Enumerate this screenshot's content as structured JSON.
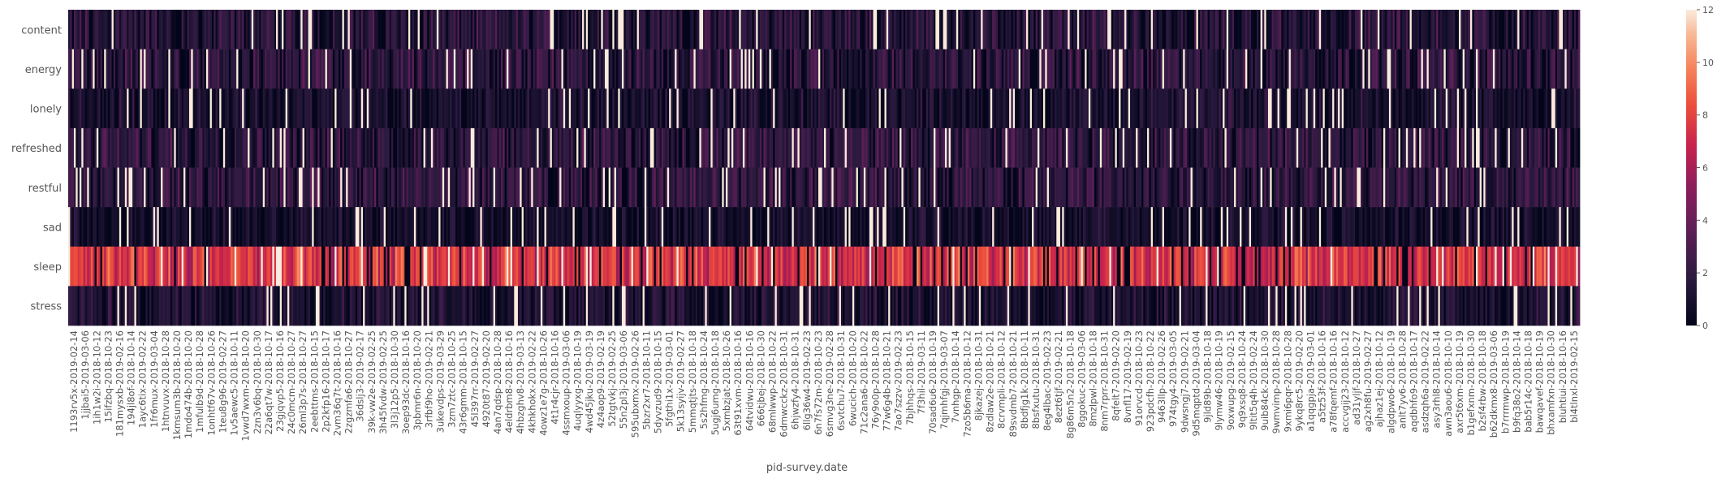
{
  "chart_data": {
    "type": "heatmap",
    "xlabel": "pid-survey.date",
    "ylabel": "",
    "rows": [
      "content",
      "energy",
      "lonely",
      "refreshed",
      "restful",
      "sad",
      "sleep",
      "stress"
    ],
    "n_columns": 800,
    "x_tick_labels": [
      "1193rv5x-2019-02-14",
      "1jjbai5-2019-03-06",
      "1ih1w2i-2018-10-12",
      "15ifzbq-2018-10-23",
      "181mysxb-2019-02-16",
      "194jl8of-2018-10-14",
      "1ayc6tix-2019-02-22",
      "1fr6mux-2019-03-04",
      "1htnvuvx-2018-10-28",
      "1kmsum3b-2018-10-20",
      "1mdo474b-2018-10-20",
      "1mfulb9d-2018-10-28",
      "1onhtf67v-2018-10-26",
      "1teu8g96-2019-02-27",
      "1v5aewc5-2018-10-11",
      "1vwd7wxm-2018-10-20",
      "2zn3v6bq-2018-10-30",
      "22a6qt7w-2018-10-17",
      "23gjqvp5-2018-10-16",
      "24c0mcm-2018-10-27",
      "26ml3p7s-2018-10-27",
      "2eebttms-2018-10-15",
      "2p2kfp16-2018-10-17",
      "2vm36q7t-2018-10-16",
      "2zgzmfa6-2018-10-27",
      "36dslj3-2019-02-17",
      "39k-vw2e-2019-02-25",
      "3h45fvdw-2019-02-25",
      "3l3j12p5-2018-10-30",
      "3oep93dc-2018-10-16",
      "3pbmr6n-2018-10-20",
      "3rfbf9ho-2019-02-21",
      "3ukevdps-2019-03-29",
      "3zm7ztc-2018-10-25",
      "43r6gmm-2018-10-15",
      "45l397rr-2019-02-27",
      "4920t87-2019-02-20",
      "4an7qdsp-2018-10-28",
      "4eldrbm8-2018-10-16",
      "4hbzghv8-2019-03-13",
      "4khkhokx-2019-02-22",
      "4owz1e7g-2018-10-26",
      "4t1r4cjr-2018-10-16",
      "4ssmxoup-2019-03-06",
      "4uqlyyxg-2018-10-19",
      "4wd45jku-2019-03-19",
      "4z4aop9-2019-02-19",
      "52tgtvkj-2019-02-25",
      "55n2pl3j-2019-03-06",
      "595ubxmx-2019-02-26",
      "5bzr2xr7-2018-10-11",
      "5dyvzud9-2018-10-15",
      "5fgthi1x-2019-03-01",
      "5k13syijv-2019-02-27",
      "5mmqtjts-2018-10-18",
      "5s2hfmg-2018-10-24",
      "5ugj6umg-2018-10-18",
      "5xmbzjat-2018-10-26",
      "63t91xvm-2018-10-16",
      "64tvidwu-2018-10-16",
      "666tjbej-2018-10-30",
      "68mlwwp-2018-10-22",
      "6dmwcckz-2018-10-31",
      "6hjwzfy4-2018-10-31",
      "6llg36w4-2019-02-23",
      "6n7fs72m-2018-10-23",
      "6smvg3ne-2019-02-28",
      "6svtchu7-2018-10-31",
      "6wucich-2018-10-20",
      "71c2ana6-2018-10-22",
      "76y9o0p-2018-10-28",
      "77w6g4b-2018-10-21",
      "7ao7szzv-2019-02-23",
      "7bjhhqs-2018-10-15",
      "7f3hil-2019-03-11",
      "70sad6u6-2018-10-19",
      "7qjmhfgj-2019-03-07",
      "7vnhgp-2018-10-14",
      "7zo5b6ma-2018-10-12",
      "8jkazej-2018-10-31",
      "8zdlaw2e-2018-10-21",
      "8crvmpli-2018-10-12",
      "89svdmb7-2018-10-21",
      "8bdfjg1k-2018-10-11",
      "8bsfxutu-2018-10-31",
      "8eg4lbac-2019-02-23",
      "8ezt6tjf-2019-02-21",
      "8g86m5n2-2018-10-18",
      "8ggokuc-2019-03-06",
      "8mzlpwl-2018-10-18",
      "8nm7rprr-2018-10-31",
      "8qfelt7-2019-02-20",
      "8vnfl17-2019-02-19",
      "91orvcd-2018-10-23",
      "923pdcfh-2018-10-22",
      "9463llp-2019-02-26",
      "974tgy4-2019-03-05",
      "9dwsngj7-2019-02-21",
      "9d5mqptd-2019-03-04",
      "9jld89b-2018-10-18",
      "9lymw46-2018-10-19",
      "9oxwupg-2019-02-15",
      "9q9xsq8-2018-10-24",
      "9ltit5q4h-2019-02-24",
      "9uib84ck-2018-10-30",
      "9wmvimp-2018-10-28",
      "9xmi6pqr-2018-10-28",
      "9ykq8rc5-2019-02-20",
      "a1qqgpja-2019-03-01",
      "a5tz53f-2018-10-16",
      "a78fqemf-2018-10-16",
      "accvgij23-2018-10-12",
      "ad31yljf-2018-10-27",
      "ag2xh8fu-2019-02-27",
      "ajhaz1ej-2018-10-12",
      "algdpwo6-2018-10-19",
      "anlt7yv6-2018-10-28",
      "aqdbhfo9-2018-10-17",
      "asdzqh6a-2019-02-22",
      "asy3rhl8-2018-10-14",
      "awn3aou6-2018-10-10",
      "axr5t6xm-2018-10-19",
      "b1gefxnm-2018-10-30",
      "b2sf4rbw-2018-10-18",
      "b62dkmx8-2019-03-06",
      "b7rrrmwp-2018-10-19",
      "b9fq38o2-2018-10-14",
      "bab5r14c-2018-10-18",
      "bawqavef-2018-10-19",
      "bhxamfxn-2018-10-30",
      "bluhtiui-2018-10-16",
      "bl4tlnxl-2019-02-15"
    ],
    "colorbar": {
      "min": 0,
      "max": 12,
      "ticks": [
        0,
        2,
        4,
        6,
        8,
        10,
        12
      ]
    },
    "colormap": "rocket",
    "value_model": {
      "content": {
        "mean": 1.6,
        "spread": 1.4
      },
      "energy": {
        "mean": 1.8,
        "spread": 1.4
      },
      "lonely": {
        "mean": 1.1,
        "spread": 1.1
      },
      "refreshed": {
        "mean": 1.9,
        "spread": 1.3
      },
      "restful": {
        "mean": 2.0,
        "spread": 1.3
      },
      "sad": {
        "mean": 0.9,
        "spread": 1.0
      },
      "sleep": {
        "mean": 7.6,
        "spread": 1.6
      },
      "stress": {
        "mean": 1.3,
        "spread": 1.1
      }
    },
    "grid": false,
    "legend": "colorbar-right"
  }
}
